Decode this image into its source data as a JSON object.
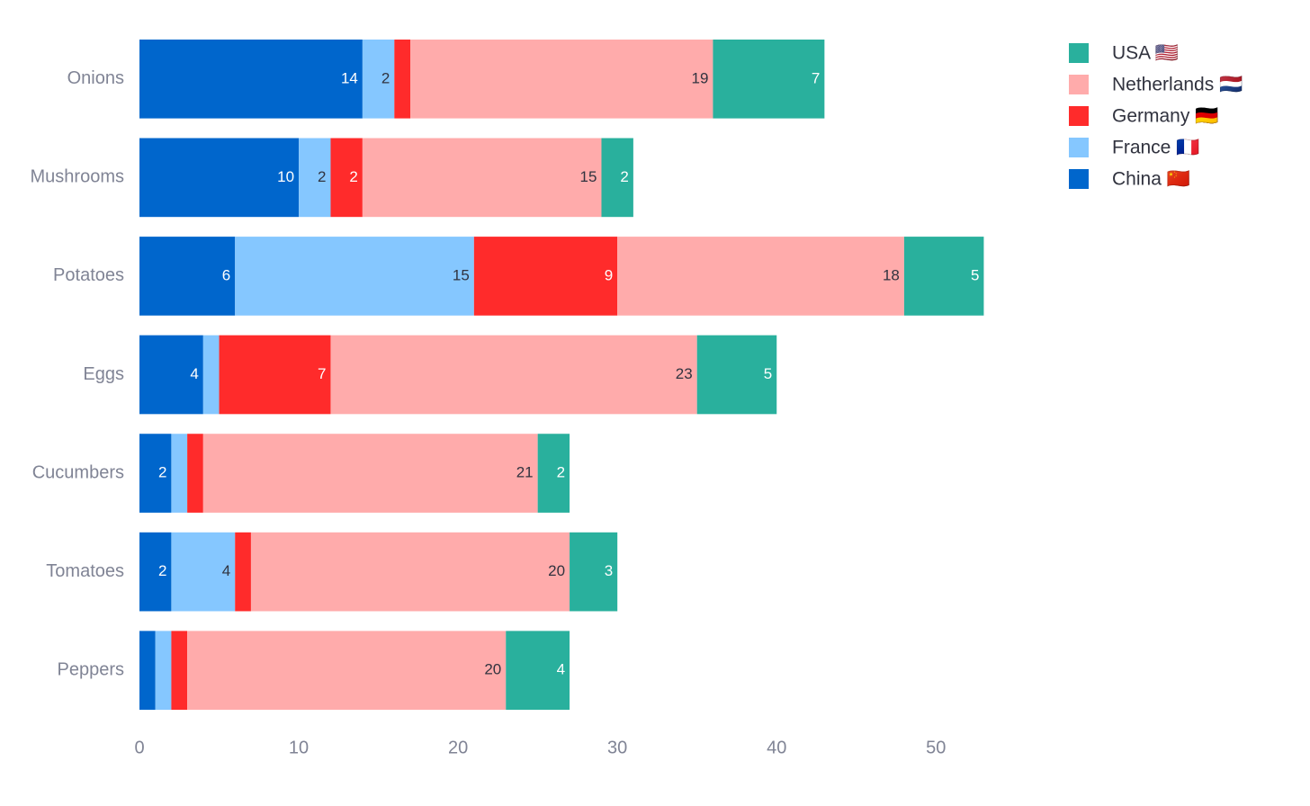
{
  "chart_data": {
    "type": "stacked-bar-horizontal",
    "categories": [
      "Onions",
      "Mushrooms",
      "Potatoes",
      "Eggs",
      "Cucumbers",
      "Tomatoes",
      "Peppers"
    ],
    "series": [
      {
        "name": "China 🇨🇳",
        "color": "#0066cc",
        "values": [
          14,
          10,
          6,
          4,
          2,
          2,
          1
        ]
      },
      {
        "name": "France 🇫🇷",
        "color": "#85c7ff",
        "values": [
          2,
          2,
          15,
          1,
          1,
          4,
          1
        ]
      },
      {
        "name": "Germany 🇩🇪",
        "color": "#ff2b2b",
        "values": [
          1,
          2,
          9,
          7,
          1,
          1,
          1
        ]
      },
      {
        "name": "Netherlands 🇳🇱",
        "color": "#ffabab",
        "values": [
          19,
          15,
          18,
          23,
          21,
          20,
          20
        ]
      },
      {
        "name": "USA 🇺🇸",
        "color": "#29b09d",
        "values": [
          7,
          2,
          5,
          5,
          2,
          3,
          4
        ]
      }
    ],
    "xlim": [
      0,
      55.8
    ],
    "xticks": [
      0,
      10,
      20,
      30,
      40,
      50
    ],
    "grid": false
  }
}
